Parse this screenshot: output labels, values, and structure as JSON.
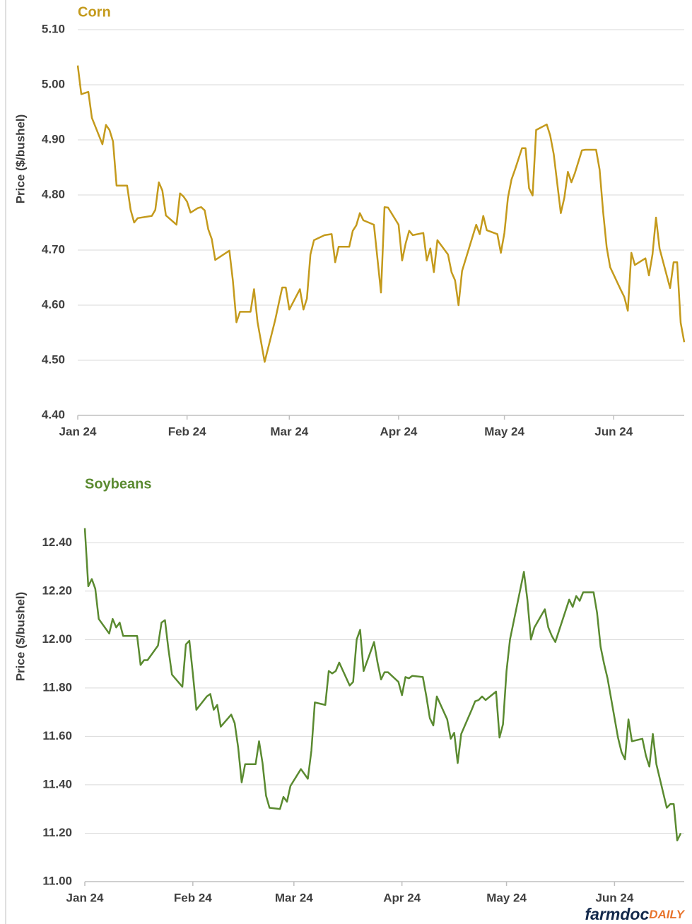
{
  "chart_data": [
    {
      "type": "line",
      "title": "Corn",
      "y_label": "Price ($/bushel)",
      "color": "#c49a1c",
      "grid": true,
      "xlim": [
        0,
        172
      ],
      "xticks": [
        {
          "value": 0,
          "label": "Jan 24"
        },
        {
          "value": 31,
          "label": "Feb 24"
        },
        {
          "value": 60,
          "label": "Mar 24"
        },
        {
          "value": 91,
          "label": "Apr 24"
        },
        {
          "value": 121,
          "label": "May 24"
        },
        {
          "value": 152,
          "label": "Jun 24"
        }
      ],
      "ylim": [
        4.4,
        5.1
      ],
      "yticks": [
        {
          "value": 4.4,
          "label": "4.40"
        },
        {
          "value": 4.5,
          "label": "4.50"
        },
        {
          "value": 4.6,
          "label": "4.60"
        },
        {
          "value": 4.7,
          "label": "4.70"
        },
        {
          "value": 4.8,
          "label": "4.80"
        },
        {
          "value": 4.9,
          "label": "4.90"
        },
        {
          "value": 5.0,
          "label": "5.00"
        },
        {
          "value": 5.1,
          "label": "5.10"
        }
      ],
      "x": [
        0,
        1,
        3,
        4,
        7,
        8,
        9,
        10,
        11,
        14,
        15,
        16,
        17,
        21,
        22,
        23,
        24,
        25,
        28,
        29,
        30,
        31,
        32,
        34,
        35,
        36,
        37,
        38,
        39,
        43,
        44,
        45,
        46,
        49,
        50,
        51,
        53,
        56,
        57,
        58,
        59,
        60,
        63,
        64,
        65,
        66,
        67,
        70,
        72,
        73,
        74,
        77,
        78,
        79,
        80,
        81,
        84,
        86,
        87,
        88,
        91,
        92,
        93,
        94,
        95,
        98,
        99,
        100,
        101,
        102,
        105,
        106,
        107,
        108,
        109,
        113,
        114,
        115,
        116,
        119,
        120,
        121,
        122,
        123,
        124,
        126,
        127,
        128,
        129,
        130,
        133,
        134,
        135,
        137,
        138,
        139,
        140,
        141,
        143,
        144,
        147,
        148,
        149,
        150,
        151,
        154,
        155,
        156,
        157,
        158,
        161,
        162,
        163,
        164,
        165,
        168,
        169,
        170,
        171,
        172
      ],
      "values": [
        5.035,
        4.983,
        4.987,
        4.94,
        4.892,
        4.927,
        4.918,
        4.897,
        4.817,
        4.817,
        4.773,
        4.75,
        4.758,
        4.762,
        4.773,
        4.823,
        4.808,
        4.763,
        4.746,
        4.803,
        4.797,
        4.788,
        4.768,
        4.776,
        4.778,
        4.772,
        4.738,
        4.72,
        4.682,
        4.699,
        4.644,
        4.569,
        4.588,
        4.588,
        4.629,
        4.569,
        4.497,
        4.573,
        4.603,
        4.632,
        4.632,
        4.592,
        4.629,
        4.592,
        4.612,
        4.692,
        4.718,
        4.727,
        4.729,
        4.678,
        4.706,
        4.706,
        4.735,
        4.745,
        4.767,
        4.754,
        4.746,
        4.623,
        4.778,
        4.777,
        4.746,
        4.681,
        4.712,
        4.735,
        4.727,
        4.731,
        4.681,
        4.703,
        4.66,
        4.718,
        4.692,
        4.66,
        4.645,
        4.6,
        4.662,
        4.746,
        4.729,
        4.762,
        4.736,
        4.729,
        4.695,
        4.731,
        4.795,
        4.828,
        4.846,
        4.885,
        4.885,
        4.812,
        4.799,
        4.918,
        4.928,
        4.908,
        4.874,
        4.767,
        4.795,
        4.842,
        4.823,
        4.84,
        4.881,
        4.882,
        4.882,
        4.846,
        4.769,
        4.705,
        4.669,
        4.628,
        4.615,
        4.59,
        4.695,
        4.673,
        4.685,
        4.654,
        4.692,
        4.759,
        4.703,
        4.631,
        4.678,
        4.678,
        4.568,
        4.533
      ]
    },
    {
      "type": "line",
      "title": "Soybeans",
      "y_label": "Price ($/bushel)",
      "color": "#5a8a30",
      "grid": true,
      "xlim": [
        0,
        172
      ],
      "xticks": [
        {
          "value": 0,
          "label": "Jan 24"
        },
        {
          "value": 31,
          "label": "Feb 24"
        },
        {
          "value": 60,
          "label": "Mar 24"
        },
        {
          "value": 91,
          "label": "Apr 24"
        },
        {
          "value": 121,
          "label": "May 24"
        },
        {
          "value": 152,
          "label": "Jun 24"
        }
      ],
      "ylim": [
        11.0,
        12.5
      ],
      "yticks": [
        {
          "value": 11.0,
          "label": "11.00"
        },
        {
          "value": 11.2,
          "label": "11.20"
        },
        {
          "value": 11.4,
          "label": "11.40"
        },
        {
          "value": 11.6,
          "label": "11.60"
        },
        {
          "value": 11.8,
          "label": "11.80"
        },
        {
          "value": 12.0,
          "label": "12.00"
        },
        {
          "value": 12.2,
          "label": "12.20"
        },
        {
          "value": 12.4,
          "label": "12.40"
        }
      ],
      "x": [
        0,
        1,
        2,
        3,
        4,
        7,
        8,
        9,
        10,
        11,
        15,
        16,
        17,
        18,
        21,
        22,
        23,
        24,
        25,
        28,
        29,
        30,
        31,
        32,
        35,
        36,
        37,
        38,
        39,
        42,
        43,
        44,
        45,
        46,
        49,
        50,
        51,
        52,
        53,
        56,
        57,
        58,
        59,
        62,
        64,
        65,
        66,
        69,
        70,
        71,
        72,
        73,
        76,
        77,
        78,
        79,
        80,
        83,
        84,
        85,
        86,
        87,
        90,
        91,
        92,
        93,
        94,
        97,
        98,
        99,
        100,
        101,
        104,
        105,
        106,
        107,
        108,
        111,
        112,
        113,
        114,
        115,
        118,
        119,
        120,
        121,
        122,
        126,
        127,
        128,
        129,
        132,
        133,
        134,
        135,
        139,
        140,
        141,
        142,
        143,
        146,
        147,
        148,
        149,
        150,
        153,
        154,
        155,
        156,
        157,
        160,
        161,
        162,
        163,
        164,
        167,
        168,
        169,
        170,
        171
      ],
      "values": [
        12.46,
        12.22,
        12.25,
        12.21,
        12.085,
        12.025,
        12.085,
        12.05,
        12.07,
        12.015,
        12.015,
        11.895,
        11.915,
        11.915,
        11.975,
        12.07,
        12.08,
        11.96,
        11.855,
        11.805,
        11.98,
        11.995,
        11.86,
        11.71,
        11.765,
        11.775,
        11.71,
        11.73,
        11.64,
        11.69,
        11.655,
        11.555,
        11.41,
        11.485,
        11.485,
        11.58,
        11.49,
        11.355,
        11.305,
        11.3,
        11.35,
        11.33,
        11.395,
        11.465,
        11.425,
        11.54,
        11.74,
        11.73,
        11.87,
        11.86,
        11.87,
        11.905,
        11.81,
        11.825,
        12.0,
        12.04,
        11.87,
        11.99,
        11.905,
        11.835,
        11.865,
        11.865,
        11.825,
        11.77,
        11.845,
        11.84,
        11.85,
        11.845,
        11.765,
        11.675,
        11.645,
        11.765,
        11.67,
        11.59,
        11.615,
        11.49,
        11.61,
        11.71,
        11.745,
        11.75,
        11.765,
        11.75,
        11.785,
        11.595,
        11.65,
        11.87,
        12.0,
        12.28,
        12.165,
        12.0,
        12.05,
        12.125,
        12.05,
        12.015,
        11.99,
        12.165,
        12.135,
        12.18,
        12.16,
        12.195,
        12.195,
        12.11,
        11.97,
        11.9,
        11.84,
        11.595,
        11.535,
        11.505,
        11.67,
        11.58,
        11.59,
        11.52,
        11.475,
        11.61,
        11.485,
        11.305,
        11.32,
        11.32,
        11.17,
        11.2
      ]
    }
  ],
  "logo": {
    "name": "farmdoc",
    "suffix": "DAILY"
  }
}
